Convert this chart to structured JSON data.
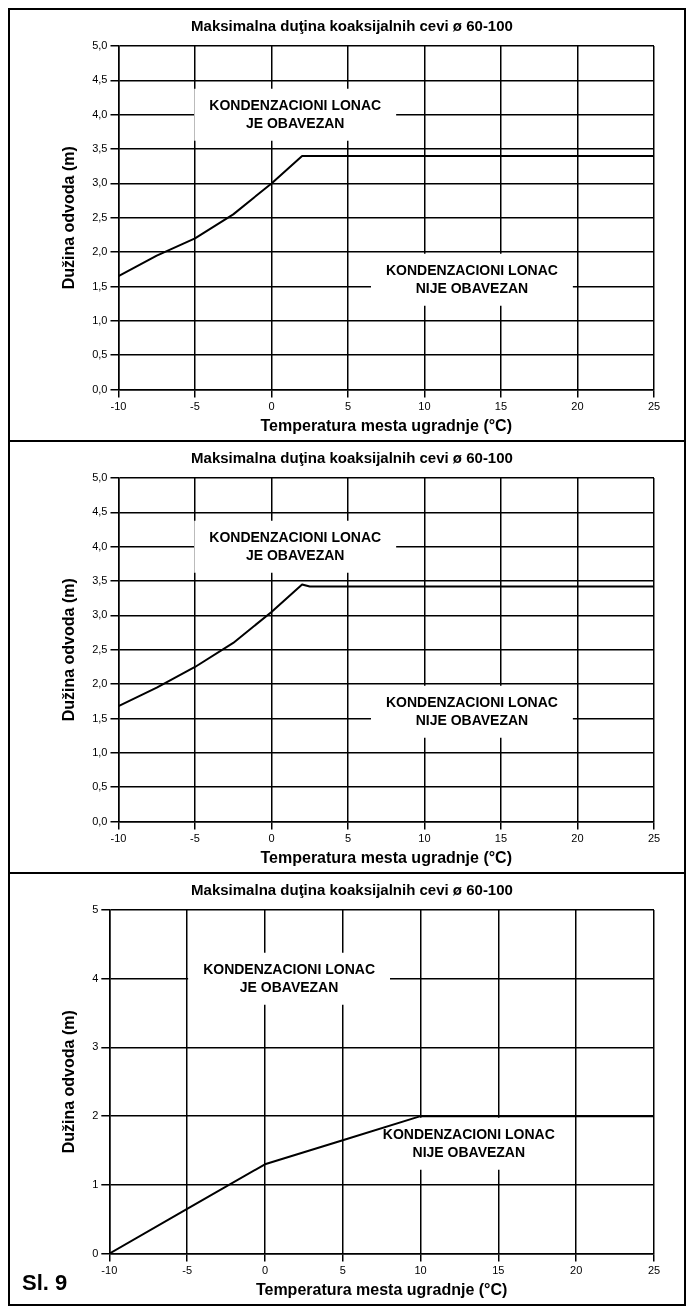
{
  "chart_data": [
    {
      "type": "line",
      "title": "Maksimalna duţina koaksijalnih cevi ø 60-100",
      "xlabel": "Temperatura mesta ugradnje (°C)",
      "ylabel": "Dužina odvoda (m)",
      "x": [
        -10,
        -7.5,
        -5,
        -2.5,
        0,
        2,
        25
      ],
      "series": [
        {
          "color": "#000000",
          "values": [
            1.65,
            1.95,
            2.2,
            2.55,
            3.0,
            3.4,
            3.4
          ]
        }
      ],
      "xlim": [
        -10,
        25
      ],
      "xticks": [
        -10,
        -5,
        0,
        5,
        10,
        15,
        20,
        25
      ],
      "ylim": [
        0,
        5
      ],
      "yticks": [
        {
          "value": 0,
          "label": "0,0"
        },
        {
          "value": 0.5,
          "label": "0,5"
        },
        {
          "value": 1,
          "label": "1,0"
        },
        {
          "value": 1.5,
          "label": "1,5"
        },
        {
          "value": 2,
          "label": "2,0"
        },
        {
          "value": 2.5,
          "label": "2,5"
        },
        {
          "value": 3,
          "label": "3,0"
        },
        {
          "value": 3.5,
          "label": "3,5"
        },
        {
          "value": 4,
          "label": "4,0"
        },
        {
          "value": 4.5,
          "label": "4,5"
        },
        {
          "value": 5,
          "label": "5,0"
        }
      ],
      "annotations": [
        "KONDENZACIONI LONAC\nJE OBAVEZAN",
        "KONDENZACIONI LONAC\nNIJE OBAVEZAN"
      ],
      "grid": true,
      "legend": false,
      "marker": "none",
      "line_style": "solid"
    },
    {
      "type": "line",
      "title": "Maksimalna duţina koaksijalnih cevi ø 60-100",
      "xlabel": "Temperatura mesta ugradnje (°C)",
      "ylabel": "Dužina odvoda (m)",
      "x": [
        -10,
        -7.5,
        -5,
        -2.5,
        0,
        2,
        2.5,
        25
      ],
      "series": [
        {
          "color": "#000000",
          "values": [
            1.68,
            1.95,
            2.25,
            2.6,
            3.05,
            3.45,
            3.42,
            3.42
          ]
        }
      ],
      "xlim": [
        -10,
        25
      ],
      "xticks": [
        -10,
        -5,
        0,
        5,
        10,
        15,
        20,
        25
      ],
      "ylim": [
        0,
        5
      ],
      "yticks": [
        {
          "value": 0,
          "label": "0,0"
        },
        {
          "value": 0.5,
          "label": "0,5"
        },
        {
          "value": 1,
          "label": "1,0"
        },
        {
          "value": 1.5,
          "label": "1,5"
        },
        {
          "value": 2,
          "label": "2,0"
        },
        {
          "value": 2.5,
          "label": "2,5"
        },
        {
          "value": 3,
          "label": "3,0"
        },
        {
          "value": 3.5,
          "label": "3,5"
        },
        {
          "value": 4,
          "label": "4,0"
        },
        {
          "value": 4.5,
          "label": "4,5"
        },
        {
          "value": 5,
          "label": "5,0"
        }
      ],
      "annotations": [
        "KONDENZACIONI LONAC\nJE OBAVEZAN",
        "KONDENZACIONI LONAC\nNIJE OBAVEZAN"
      ],
      "grid": true,
      "legend": false,
      "marker": "none",
      "line_style": "solid"
    },
    {
      "type": "line",
      "title": "Maksimalna duţina koaksijalnih cevi ø 60-100",
      "xlabel": "Temperatura mesta ugradnje (°C)",
      "ylabel": "Dužina odvoda (m)",
      "x": [
        -10,
        -5,
        0,
        5,
        10,
        25
      ],
      "series": [
        {
          "color": "#000000",
          "values": [
            0,
            0.65,
            1.3,
            1.65,
            2,
            2
          ]
        }
      ],
      "xlim": [
        -10,
        25
      ],
      "xticks": [
        -10,
        -5,
        0,
        5,
        10,
        15,
        20,
        25
      ],
      "ylim": [
        0,
        5
      ],
      "yticks": [
        0,
        1,
        2,
        3,
        4,
        5
      ],
      "annotations": [
        "KONDENZACIONI LONAC\nJE OBAVEZAN",
        "KONDENZACIONI LONAC\nNIJE OBAVEZAN",
        "Sl. 9"
      ],
      "grid": true,
      "legend": false,
      "marker": "none",
      "line_style": "solid"
    }
  ]
}
